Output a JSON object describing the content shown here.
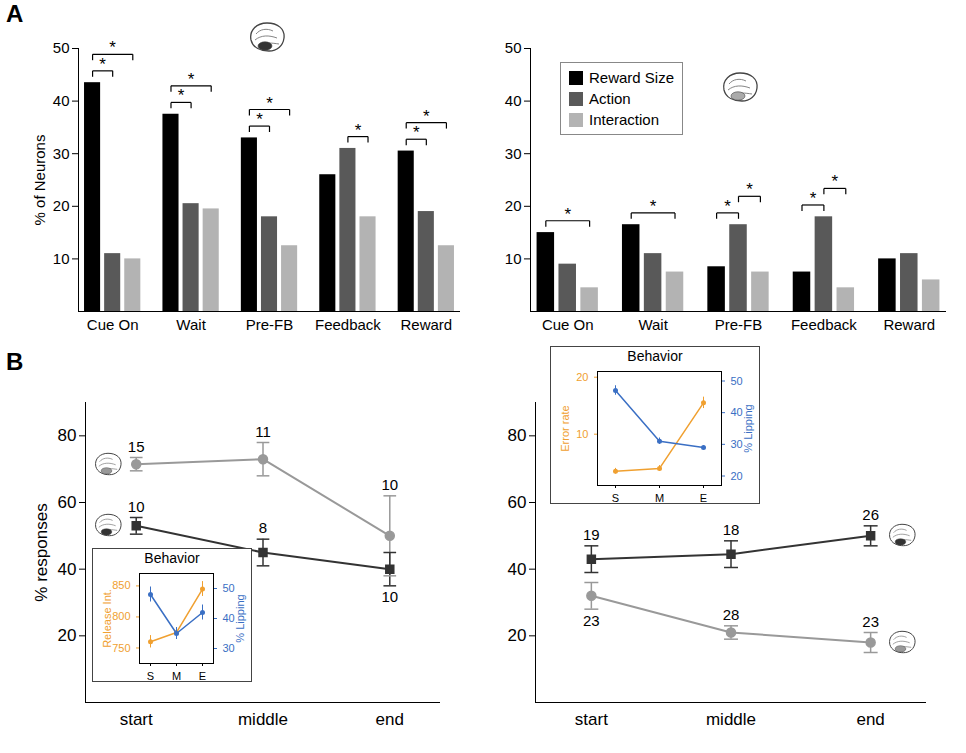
{
  "chart_data": [
    {
      "panel": "A",
      "type": "bar",
      "categories": [
        "Cue On",
        "Wait",
        "Pre-FB",
        "Feedback",
        "Reward"
      ],
      "series": [
        {
          "name": "Reward Size",
          "color": "#000000",
          "values": [
            43.5,
            37.5,
            33,
            26,
            30.5
          ]
        },
        {
          "name": "Action",
          "color": "#595959",
          "values": [
            11,
            20.5,
            18,
            31,
            19
          ]
        },
        {
          "name": "Interaction",
          "color": "#b3b3b3",
          "values": [
            10,
            19.5,
            12.5,
            18,
            12.5
          ]
        }
      ],
      "ylabel": "% of Neurons",
      "ylim": [
        0,
        50
      ],
      "yticks": [
        10,
        20,
        30,
        40,
        50
      ],
      "annotations": [
        {
          "category": "Cue On",
          "between": [
            "Reward Size",
            "Action"
          ],
          "text": "*"
        },
        {
          "category": "Cue On",
          "between": [
            "Reward Size",
            "Interaction"
          ],
          "text": "*"
        },
        {
          "category": "Wait",
          "between": [
            "Reward Size",
            "Action"
          ],
          "text": "*"
        },
        {
          "category": "Wait",
          "between": [
            "Reward Size",
            "Interaction"
          ],
          "text": "*"
        },
        {
          "category": "Pre-FB",
          "between": [
            "Reward Size",
            "Action"
          ],
          "text": "*"
        },
        {
          "category": "Pre-FB",
          "between": [
            "Reward Size",
            "Interaction"
          ],
          "text": "*"
        },
        {
          "category": "Feedback",
          "between": [
            "Action",
            "Interaction"
          ],
          "text": "*"
        },
        {
          "category": "Reward",
          "between": [
            "Reward Size",
            "Action"
          ],
          "text": "*"
        },
        {
          "category": "Reward",
          "between": [
            "Reward Size",
            "Interaction"
          ],
          "text": "*"
        }
      ]
    },
    {
      "type": "bar",
      "categories": [
        "Cue On",
        "Wait",
        "Pre-FB",
        "Feedback",
        "Reward"
      ],
      "series": [
        {
          "name": "Reward Size",
          "color": "#000000",
          "values": [
            15,
            16.5,
            8.5,
            7.5,
            10
          ]
        },
        {
          "name": "Action",
          "color": "#595959",
          "values": [
            9,
            11,
            16.5,
            18,
            11
          ]
        },
        {
          "name": "Interaction",
          "color": "#b3b3b3",
          "values": [
            4.5,
            7.5,
            7.5,
            4.5,
            6
          ]
        }
      ],
      "ylim": [
        0,
        50
      ],
      "yticks": [
        10,
        20,
        30,
        40,
        50
      ],
      "legend": "top-left",
      "annotations": [
        {
          "category": "Cue On",
          "between": [
            "Reward Size",
            "Interaction"
          ],
          "text": "*"
        },
        {
          "category": "Wait",
          "between": [
            "Reward Size",
            "Interaction"
          ],
          "text": "*"
        },
        {
          "category": "Pre-FB",
          "between": [
            "Reward Size",
            "Action"
          ],
          "text": "*"
        },
        {
          "category": "Pre-FB",
          "between": [
            "Action",
            "Interaction"
          ],
          "text": "*"
        },
        {
          "category": "Feedback",
          "between": [
            "Reward Size",
            "Action"
          ],
          "text": "*"
        },
        {
          "category": "Feedback",
          "between": [
            "Action",
            "Interaction"
          ],
          "text": "*"
        }
      ]
    },
    {
      "panel": "B",
      "type": "line",
      "categories": [
        "start",
        "middle",
        "end"
      ],
      "ylabel": "% responses",
      "ylim": [
        0,
        90
      ],
      "yticks": [
        20,
        40,
        60,
        80
      ],
      "series": [
        {
          "color": "#999999",
          "marker": "circle",
          "values": [
            71.5,
            73,
            50
          ],
          "errors": [
            2,
            5,
            12
          ],
          "n": [
            15,
            11,
            10
          ]
        },
        {
          "color": "#333333",
          "marker": "square",
          "values": [
            53,
            45,
            40
          ],
          "errors": [
            2.5,
            4,
            5
          ],
          "n": [
            10,
            8,
            10
          ]
        }
      ],
      "inset": {
        "type": "line",
        "title": "Behavior",
        "categories": [
          "S",
          "M",
          "E"
        ],
        "series": [
          {
            "name": "Release Int.",
            "color": "#f0a030",
            "values": [
              760,
              775,
              845
            ],
            "errors": [
              10,
              8,
              12
            ]
          },
          {
            "name": "% Lipping",
            "color": "#3a6fc4",
            "axis": "y2",
            "values": [
              48,
              35,
              42
            ],
            "errors": [
              2.5,
              2,
              2.5
            ]
          }
        ],
        "ylim": [
          725,
          870
        ],
        "yticks": [
          750,
          800,
          850
        ],
        "y2lim": [
          25,
          55
        ],
        "y2ticks": [
          30,
          40,
          50
        ]
      }
    },
    {
      "type": "line",
      "categories": [
        "start",
        "middle",
        "end"
      ],
      "ylim": [
        0,
        90
      ],
      "yticks": [
        20,
        40,
        60,
        80
      ],
      "series": [
        {
          "color": "#333333",
          "marker": "square",
          "values": [
            43,
            44.5,
            50
          ],
          "errors": [
            4,
            4,
            3
          ],
          "n": [
            19,
            18,
            26
          ]
        },
        {
          "color": "#999999",
          "marker": "circle",
          "values": [
            32,
            21,
            18
          ],
          "errors": [
            4,
            2,
            3
          ],
          "n": [
            23,
            28,
            23
          ]
        }
      ],
      "inset": {
        "type": "line",
        "title": "Behavior",
        "categories": [
          "S",
          "M",
          "E"
        ],
        "series": [
          {
            "name": "Error rate",
            "color": "#f0a030",
            "values": [
              3.5,
              4,
              15.5
            ],
            "errors": [
              0.5,
              0.5,
              1
            ]
          },
          {
            "name": "% Lipping",
            "color": "#3a6fc4",
            "axis": "y2",
            "values": [
              47,
              31,
              29
            ],
            "errors": [
              1.5,
              1,
              0.5
            ]
          }
        ],
        "ylim": [
          1,
          21
        ],
        "yticks": [
          10,
          20
        ],
        "y2lim": [
          17,
          53
        ],
        "y2ticks": [
          20,
          30,
          40,
          50
        ]
      }
    }
  ]
}
